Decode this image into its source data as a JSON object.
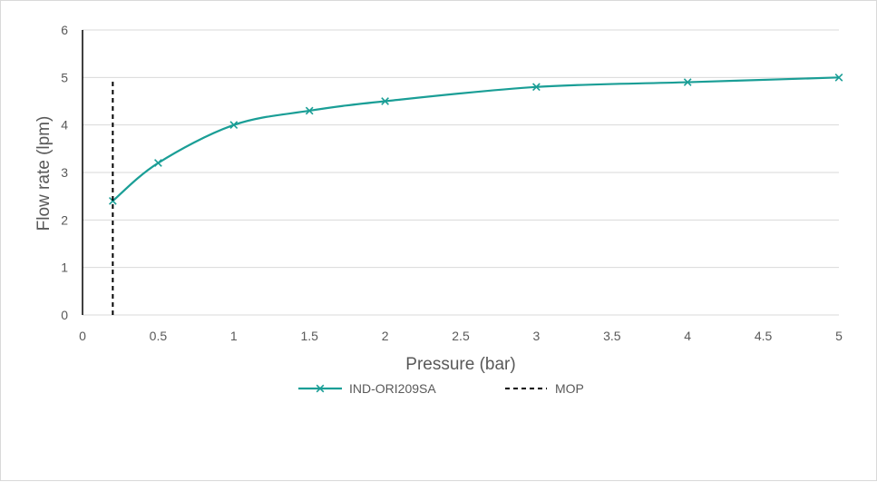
{
  "chart_data": {
    "type": "line",
    "xlabel": "Pressure (bar)",
    "ylabel": "Flow rate (lpm)",
    "xlim": [
      0,
      5
    ],
    "ylim": [
      0,
      6
    ],
    "x_ticks": [
      "0",
      "0.5",
      "1",
      "1.5",
      "2",
      "2.5",
      "3",
      "3.5",
      "4",
      "4.5",
      "5"
    ],
    "y_ticks": [
      "0",
      "1",
      "2",
      "3",
      "4",
      "5",
      "6"
    ],
    "grid": "horizontal",
    "legend_position": "bottom",
    "series": [
      {
        "name": "IND-ORI209SA",
        "color": "#1a9e96",
        "marker": "x",
        "smooth": true,
        "x": [
          0.2,
          0.5,
          1,
          1.5,
          2,
          3,
          4,
          5
        ],
        "y": [
          2.4,
          3.2,
          4.0,
          4.3,
          4.5,
          4.8,
          4.9,
          5.0
        ]
      },
      {
        "name": "MOP",
        "color": "#000000",
        "style": "dashed",
        "x": [
          0.2,
          0.2
        ],
        "y": [
          0,
          4.95
        ]
      }
    ]
  }
}
